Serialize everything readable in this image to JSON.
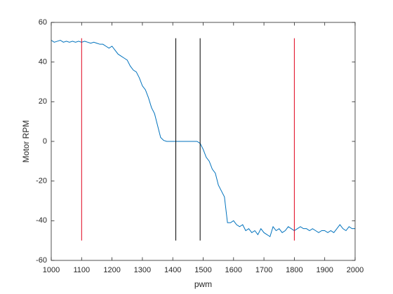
{
  "chart_data": {
    "type": "line",
    "xlabel": "pwm",
    "ylabel": "Motor RPM",
    "xlim": [
      1000,
      2000
    ],
    "xticks": [
      1000,
      1100,
      1200,
      1300,
      1400,
      1500,
      1600,
      1700,
      1800,
      1900,
      2000
    ],
    "ylim": [
      -60,
      60
    ],
    "yticks": [
      -60,
      -40,
      -20,
      0,
      20,
      40,
      60
    ],
    "series": [
      {
        "color": "#0072bd",
        "x": [
          1000,
          1010,
          1020,
          1030,
          1040,
          1050,
          1060,
          1070,
          1080,
          1090,
          1100,
          1110,
          1120,
          1130,
          1140,
          1150,
          1160,
          1170,
          1180,
          1190,
          1200,
          1210,
          1220,
          1230,
          1240,
          1250,
          1260,
          1270,
          1280,
          1290,
          1300,
          1310,
          1320,
          1330,
          1340,
          1350,
          1360,
          1370,
          1380,
          1390,
          1400,
          1410,
          1420,
          1430,
          1440,
          1450,
          1460,
          1470,
          1480,
          1490,
          1500,
          1510,
          1520,
          1530,
          1540,
          1550,
          1560,
          1570,
          1580,
          1590,
          1600,
          1610,
          1620,
          1630,
          1640,
          1650,
          1660,
          1670,
          1680,
          1690,
          1700,
          1710,
          1720,
          1730,
          1740,
          1750,
          1760,
          1770,
          1780,
          1790,
          1800,
          1810,
          1820,
          1830,
          1840,
          1850,
          1860,
          1870,
          1880,
          1890,
          1900,
          1910,
          1920,
          1930,
          1940,
          1950,
          1960,
          1970,
          1980,
          1990,
          2000
        ],
        "values": [
          51,
          50,
          50.5,
          51,
          50,
          50.5,
          50,
          50.5,
          50,
          50.5,
          50,
          50.5,
          50,
          49.5,
          50,
          49.5,
          49,
          49,
          48,
          47,
          48,
          46,
          44,
          43,
          42,
          41,
          38,
          36,
          35,
          32,
          28,
          26,
          22,
          17,
          14,
          8,
          2,
          0.5,
          0,
          0,
          0,
          0,
          0,
          0,
          0,
          0,
          0,
          0,
          0,
          -1,
          -4,
          -8,
          -10,
          -14,
          -16,
          -22,
          -25,
          -28,
          -41,
          -41,
          -40,
          -42,
          -43,
          -42,
          -45,
          -44,
          -46,
          -45,
          -47,
          -44,
          -46,
          -47,
          -48,
          -43,
          -45,
          -44,
          -46,
          -45,
          -43,
          -44,
          -45,
          -44,
          -43,
          -44,
          -44,
          -45,
          -44,
          -45,
          -46,
          -45,
          -45,
          -46,
          -45,
          -46,
          -44,
          -42,
          -44,
          -45,
          -43,
          -44,
          -44
        ]
      },
      {
        "color": "#e0001b",
        "x": [
          1100,
          1100
        ],
        "values": [
          52,
          -50
        ]
      },
      {
        "color": "#e0001b",
        "x": [
          1800,
          1800
        ],
        "values": [
          52,
          -50
        ]
      },
      {
        "color": "#000000",
        "x": [
          1410,
          1410
        ],
        "values": [
          52,
          -50
        ]
      },
      {
        "color": "#000000",
        "x": [
          1490,
          1490
        ],
        "values": [
          52,
          -50
        ]
      }
    ]
  }
}
